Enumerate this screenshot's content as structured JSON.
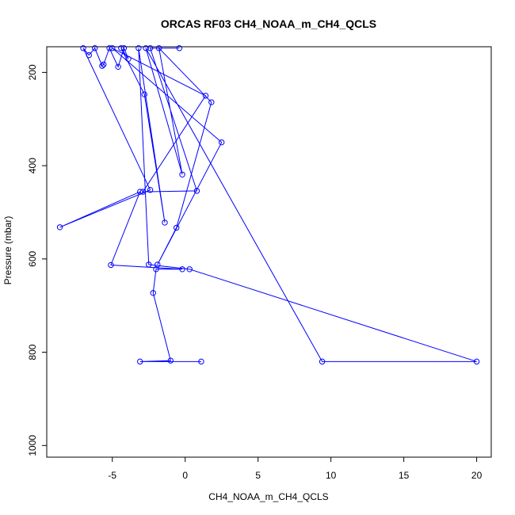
{
  "chart_data": {
    "type": "scatter",
    "title": "ORCAS RF03 CH4_NOAA_m_CH4_QCLS",
    "xlabel": "CH4_NOAA_m_CH4_QCLS",
    "ylabel": "Pressure (mbar)",
    "xlim": [
      -9.5,
      21
    ],
    "ylim": [
      1025,
      145
    ],
    "y_reversed": true,
    "x_ticks": [
      -5,
      0,
      5,
      10,
      15,
      20
    ],
    "x_tick_labels": [
      "-5",
      "0",
      "5",
      "10",
      "15",
      "20"
    ],
    "y_ticks": [
      200,
      400,
      600,
      800,
      1000
    ],
    "y_tick_labels": [
      "200",
      "400",
      "600",
      "800",
      "1000"
    ],
    "grid": false,
    "legend": "none",
    "series": [
      {
        "color": "#0000ff",
        "marker": "open-circle",
        "connected": true,
        "points": [
          [
            1.1,
            820
          ],
          [
            -3.1,
            820
          ],
          [
            -1.0,
            818
          ],
          [
            -2.2,
            673
          ],
          [
            -2.0,
            622
          ],
          [
            -0.2,
            622
          ],
          [
            -5.1,
            613
          ],
          [
            -3.1,
            456
          ],
          [
            -8.6,
            532
          ],
          [
            -2.4,
            452
          ],
          [
            -7.0,
            148
          ],
          [
            -6.6,
            163
          ],
          [
            -6.2,
            148
          ],
          [
            -5.7,
            186
          ],
          [
            -5.6,
            183
          ],
          [
            -5.2,
            148
          ],
          [
            -4.6,
            188
          ],
          [
            -4.2,
            148
          ],
          [
            -3.9,
            171
          ],
          [
            -4.4,
            148
          ],
          [
            -2.8,
            247
          ],
          [
            -1.4,
            522
          ],
          [
            -3.2,
            148
          ],
          [
            -2.5,
            612
          ],
          [
            0.3,
            622
          ],
          [
            20.0,
            820
          ],
          [
            9.4,
            820
          ],
          [
            -2.7,
            148
          ],
          [
            -0.2,
            419
          ],
          [
            -1.8,
            148
          ],
          [
            1.8,
            264
          ],
          [
            -0.6,
            533
          ],
          [
            -1.9,
            612
          ],
          [
            2.5,
            350
          ],
          [
            -5.0,
            148
          ],
          [
            1.4,
            250
          ],
          [
            -2.9,
            456
          ],
          [
            0.8,
            454
          ],
          [
            -2.4,
            148
          ],
          [
            -0.4,
            148
          ]
        ]
      }
    ]
  }
}
